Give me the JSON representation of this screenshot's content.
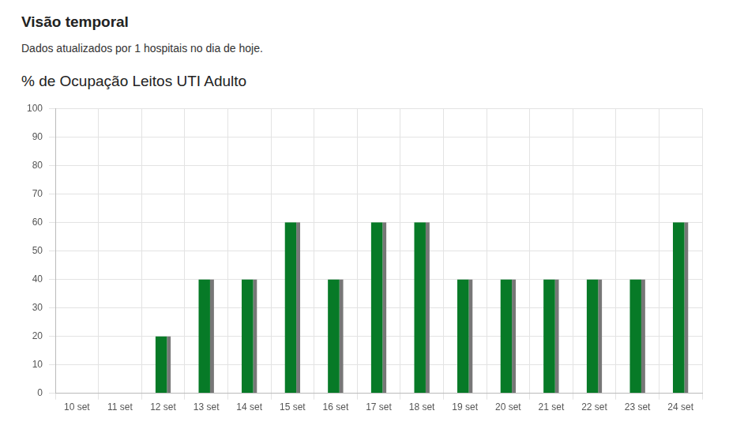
{
  "page": {
    "heading": "Visão temporal",
    "note": "Dados atualizados por 1 hospitais no dia de hoje."
  },
  "chart_data": {
    "type": "bar",
    "title": "% de Ocupação Leitos UTI Adulto",
    "categories": [
      "10 set",
      "11 set",
      "12 set",
      "13 set",
      "14 set",
      "15 set",
      "16 set",
      "17 set",
      "18 set",
      "19 set",
      "20 set",
      "21 set",
      "22 set",
      "23 set",
      "24 set"
    ],
    "values": [
      0,
      0,
      20,
      40,
      40,
      60,
      40,
      60,
      60,
      40,
      40,
      40,
      40,
      40,
      60
    ],
    "color": "#077a27",
    "ylim": [
      0,
      100
    ],
    "yticks": [
      0,
      10,
      20,
      30,
      40,
      50,
      60,
      70,
      80,
      90,
      100
    ],
    "grid": true
  }
}
